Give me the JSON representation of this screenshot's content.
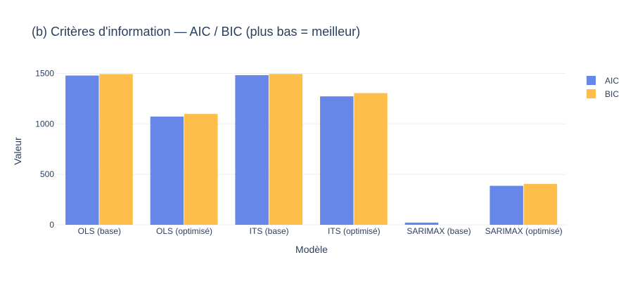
{
  "chart_data": {
    "type": "bar",
    "title": "(b) Critères d'information — AIC / BIC (plus bas = meilleur)",
    "xlabel": "Modèle",
    "ylabel": "Valeur",
    "categories": [
      "OLS (base)",
      "OLS (optimisé)",
      "ITS (base)",
      "ITS (optimisé)",
      "SARIMAX (base)",
      "SARIMAX (optimisé)"
    ],
    "series": [
      {
        "name": "AIC",
        "color": "#5a7de6",
        "values": [
          1478,
          1072,
          1482,
          1272,
          22,
          386
        ]
      },
      {
        "name": "BIC",
        "color": "#ffb73a",
        "values": [
          1493,
          1098,
          1494,
          1304,
          0,
          405
        ]
      }
    ],
    "ylim": [
      0,
      1600
    ],
    "yticks": [
      0,
      500,
      1000,
      1500
    ],
    "ytick_labels": [
      "0",
      "500",
      "1000",
      "1500"
    ],
    "grid": true,
    "legend_position": "top-right"
  }
}
